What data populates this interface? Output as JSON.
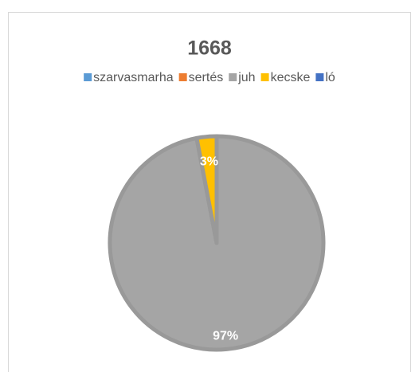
{
  "chart_data": {
    "type": "pie",
    "title": "1668",
    "categories": [
      "szarvasmarha",
      "sertés",
      "juh",
      "kecske",
      "ló"
    ],
    "values": [
      0,
      0,
      97,
      3,
      0
    ],
    "value_labels": [
      null,
      null,
      "97%",
      "3%",
      null
    ],
    "colors": [
      "#5b9bd5",
      "#ed7d31",
      "#a5a5a5",
      "#ffc000",
      "#4472c4"
    ],
    "legend": "top"
  }
}
